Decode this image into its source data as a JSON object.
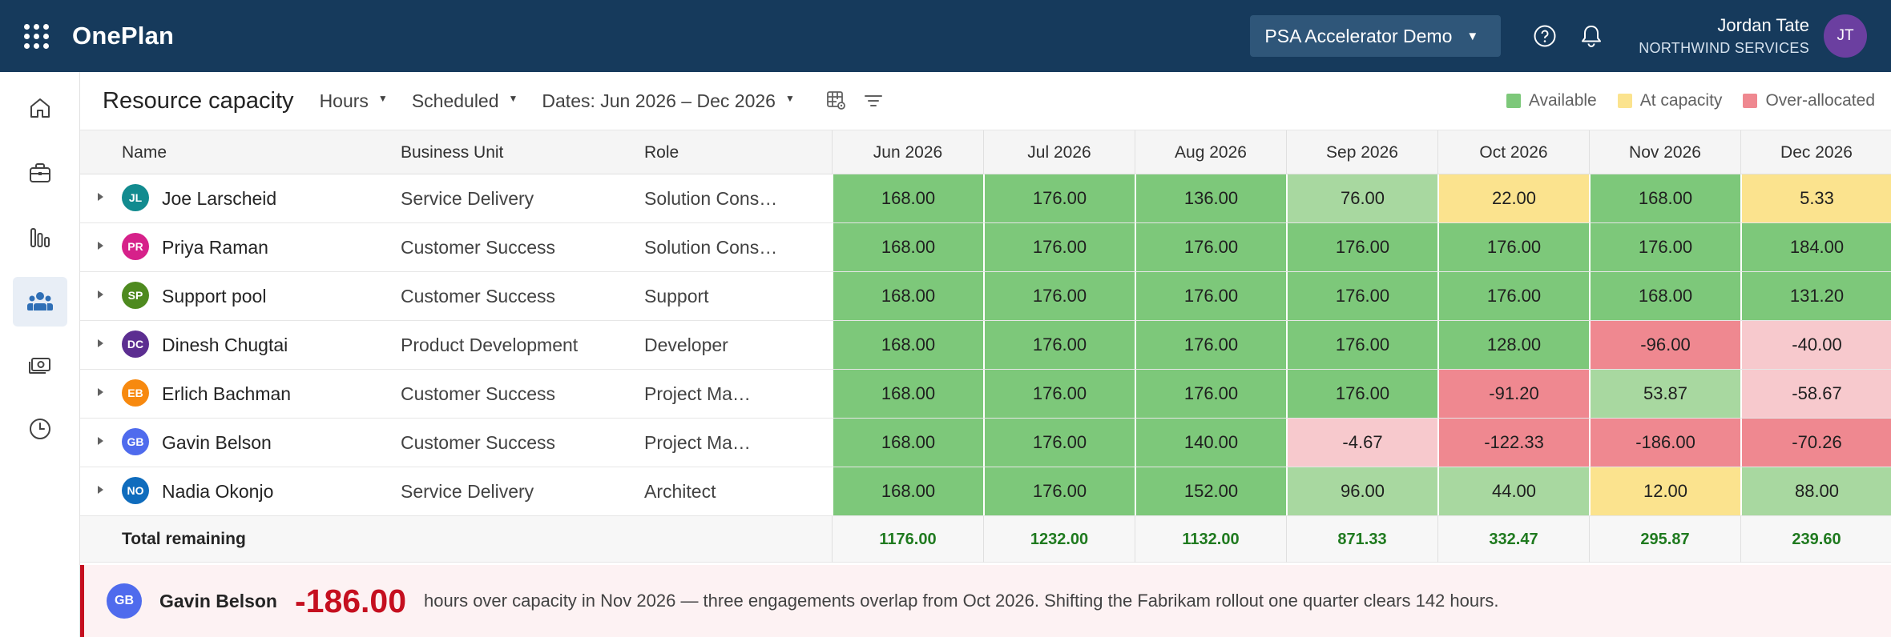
{
  "app": {
    "brand": "OnePlan",
    "environment": "PSA Accelerator Demo",
    "user": {
      "name": "Jordan Tate",
      "org": "NORTHWIND SERVICES",
      "initials": "JT"
    }
  },
  "nav": {
    "items": [
      {
        "id": "home",
        "icon": "home-icon",
        "active": false
      },
      {
        "id": "portfolio",
        "icon": "briefcase-icon",
        "active": false
      },
      {
        "id": "reports",
        "icon": "bar-chart-icon",
        "active": false
      },
      {
        "id": "resources",
        "icon": "people-icon",
        "active": true
      },
      {
        "id": "financials",
        "icon": "money-icon",
        "active": false
      },
      {
        "id": "timesheets",
        "icon": "clock-icon",
        "active": false
      }
    ]
  },
  "toolbar": {
    "title": "Resource capacity",
    "unit": "Hours",
    "mode": "Scheduled",
    "dates": "Dates: Jun 2026 – Dec 2026"
  },
  "legend": [
    {
      "label": "Available",
      "color": "#7dc87a"
    },
    {
      "label": "At capacity",
      "color": "#fbe38e"
    },
    {
      "label": "Over-allocated",
      "color": "#ef8890"
    }
  ],
  "table": {
    "headers": {
      "name": "Name",
      "bu": "Business Unit",
      "role": "Role"
    },
    "months": [
      "Jun 2026",
      "Jul 2026",
      "Aug 2026",
      "Sep 2026",
      "Oct 2026",
      "Nov 2026",
      "Dec 2026"
    ],
    "rows": [
      {
        "initials": "JL",
        "color": "#128b8f",
        "name": "Joe Larscheid",
        "bu": "Service Delivery",
        "role": "Solution Cons…",
        "values": [
          "168.00",
          "176.00",
          "136.00",
          "76.00",
          "22.00",
          "168.00",
          "5.33"
        ],
        "status": [
          "green",
          "green",
          "green",
          "light",
          "yellow",
          "green",
          "yellow"
        ]
      },
      {
        "initials": "PR",
        "color": "#d6218a",
        "name": "Priya Raman",
        "bu": "Customer Success",
        "role": "Solution Cons…",
        "values": [
          "168.00",
          "176.00",
          "176.00",
          "176.00",
          "176.00",
          "176.00",
          "184.00"
        ],
        "status": [
          "green",
          "green",
          "green",
          "green",
          "green",
          "green",
          "green"
        ]
      },
      {
        "initials": "SP",
        "color": "#4e8a1f",
        "name": "Support pool",
        "bu": "Customer Success",
        "role": "Support",
        "values": [
          "168.00",
          "176.00",
          "176.00",
          "176.00",
          "176.00",
          "168.00",
          "131.20"
        ],
        "status": [
          "green",
          "green",
          "green",
          "green",
          "green",
          "green",
          "green"
        ]
      },
      {
        "initials": "DC",
        "color": "#5c2e91",
        "name": "Dinesh Chugtai",
        "bu": "Product Development",
        "role": "Developer",
        "values": [
          "168.00",
          "176.00",
          "176.00",
          "176.00",
          "128.00",
          "-96.00",
          "-40.00"
        ],
        "status": [
          "green",
          "green",
          "green",
          "green",
          "green",
          "red",
          "pink"
        ]
      },
      {
        "initials": "EB",
        "color": "#f7890f",
        "name": "Erlich Bachman",
        "bu": "Customer Success",
        "role": "Project Ma…",
        "values": [
          "168.00",
          "176.00",
          "176.00",
          "176.00",
          "-91.20",
          "53.87",
          "-58.67"
        ],
        "status": [
          "green",
          "green",
          "green",
          "green",
          "red",
          "light",
          "pink"
        ]
      },
      {
        "initials": "GB",
        "color": "#4f6bed",
        "name": "Gavin Belson",
        "bu": "Customer Success",
        "role": "Project Ma…",
        "values": [
          "168.00",
          "176.00",
          "140.00",
          "-4.67",
          "-122.33",
          "-186.00",
          "-70.26"
        ],
        "status": [
          "green",
          "green",
          "green",
          "pink",
          "red",
          "red",
          "red"
        ]
      },
      {
        "initials": "NO",
        "color": "#0f6cbd",
        "name": "Nadia Okonjo",
        "bu": "Service Delivery",
        "role": "Architect",
        "values": [
          "168.00",
          "176.00",
          "152.00",
          "96.00",
          "44.00",
          "12.00",
          "88.00"
        ],
        "status": [
          "green",
          "green",
          "green",
          "light",
          "light",
          "yellow",
          "light"
        ]
      }
    ],
    "total": {
      "label": "Total remaining",
      "values": [
        "1176.00",
        "1232.00",
        "1132.00",
        "871.33",
        "332.47",
        "295.87",
        "239.60"
      ]
    }
  },
  "alert": {
    "initials": "GB",
    "name": "Gavin Belson",
    "value": "-186.00",
    "message": "hours over capacity in Nov 2026 — three engagements overlap from Oct 2026. Shifting the Fabrikam rollout one quarter clears 142 hours."
  }
}
